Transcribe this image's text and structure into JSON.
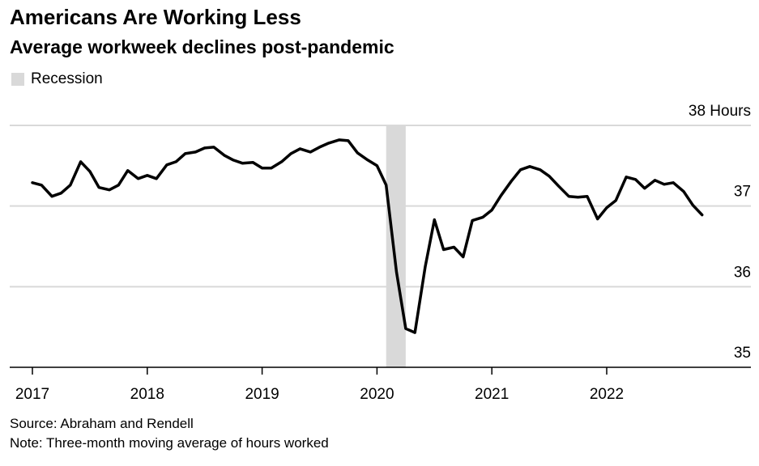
{
  "header": {
    "title": "Americans Are Working Less",
    "subtitle": "Average workweek declines post-pandemic"
  },
  "legend": {
    "label": "Recession",
    "color": "#d9d9d9"
  },
  "footer": {
    "source": "Source: Abraham and Rendell",
    "note": "Note: Three-month moving average of hours worked"
  },
  "colors": {
    "line": "#000000",
    "grid": "#d9d9d9",
    "recession": "#d9d9d9",
    "axis": "#000000"
  },
  "chart_data": {
    "type": "line",
    "title": "Americans Are Working Less",
    "subtitle": "Average workweek declines post-pandemic",
    "ylabel": "",
    "y_unit_label": "38 Hours",
    "ylim": [
      35,
      38
    ],
    "xlim": [
      2016.9,
      2023.2
    ],
    "yticks": [
      {
        "value": 38,
        "label": "38 Hours"
      },
      {
        "value": 37,
        "label": "37"
      },
      {
        "value": 36,
        "label": "36"
      },
      {
        "value": 35,
        "label": "35"
      }
    ],
    "xticks": [
      {
        "value": 2017,
        "label": "2017"
      },
      {
        "value": 2018,
        "label": "2018"
      },
      {
        "value": 2019,
        "label": "2019"
      },
      {
        "value": 2020,
        "label": "2020"
      },
      {
        "value": 2021,
        "label": "2021"
      },
      {
        "value": 2022,
        "label": "2022"
      }
    ],
    "recession": [
      2020.08,
      2020.25
    ],
    "grid": true,
    "legend_position": "top-left",
    "series": [
      {
        "x": [
          2017.0,
          2017.08,
          2017.17,
          2017.25,
          2017.33,
          2017.42,
          2017.5,
          2017.58,
          2017.67,
          2017.75,
          2017.83,
          2017.92,
          2018.0,
          2018.08,
          2018.17,
          2018.25,
          2018.33,
          2018.42,
          2018.5,
          2018.58,
          2018.67,
          2018.75,
          2018.83,
          2018.92,
          2019.0,
          2019.08,
          2019.17,
          2019.25,
          2019.33,
          2019.42,
          2019.5,
          2019.58,
          2019.67,
          2019.75,
          2019.83,
          2019.92,
          2020.0,
          2020.08,
          2020.17,
          2020.25,
          2020.33,
          2020.42,
          2020.5,
          2020.58,
          2020.67,
          2020.75,
          2020.83,
          2020.92,
          2021.0,
          2021.08,
          2021.17,
          2021.25,
          2021.33,
          2021.42,
          2021.5,
          2021.58,
          2021.67,
          2021.75,
          2021.83,
          2021.92,
          2022.0,
          2022.08,
          2022.17,
          2022.25,
          2022.33,
          2022.42,
          2022.5,
          2022.58,
          2022.67,
          2022.75,
          2022.83
        ],
        "values": [
          37.29,
          37.26,
          37.12,
          37.16,
          37.26,
          37.55,
          37.43,
          37.23,
          37.2,
          37.26,
          37.44,
          37.34,
          37.38,
          37.34,
          37.51,
          37.55,
          37.65,
          37.67,
          37.72,
          37.73,
          37.63,
          37.57,
          37.53,
          37.54,
          37.47,
          37.47,
          37.55,
          37.65,
          37.71,
          37.67,
          37.73,
          37.78,
          37.82,
          37.81,
          37.66,
          37.57,
          37.5,
          37.26,
          36.18,
          35.48,
          35.43,
          36.25,
          36.83,
          36.46,
          36.49,
          36.37,
          36.82,
          36.86,
          36.95,
          37.13,
          37.31,
          37.45,
          37.49,
          37.45,
          37.37,
          37.25,
          37.12,
          37.11,
          37.12,
          36.84,
          36.98,
          37.07,
          37.36,
          37.33,
          37.22,
          37.32,
          37.27,
          37.29,
          37.18,
          37.01,
          36.89
        ]
      }
    ]
  }
}
